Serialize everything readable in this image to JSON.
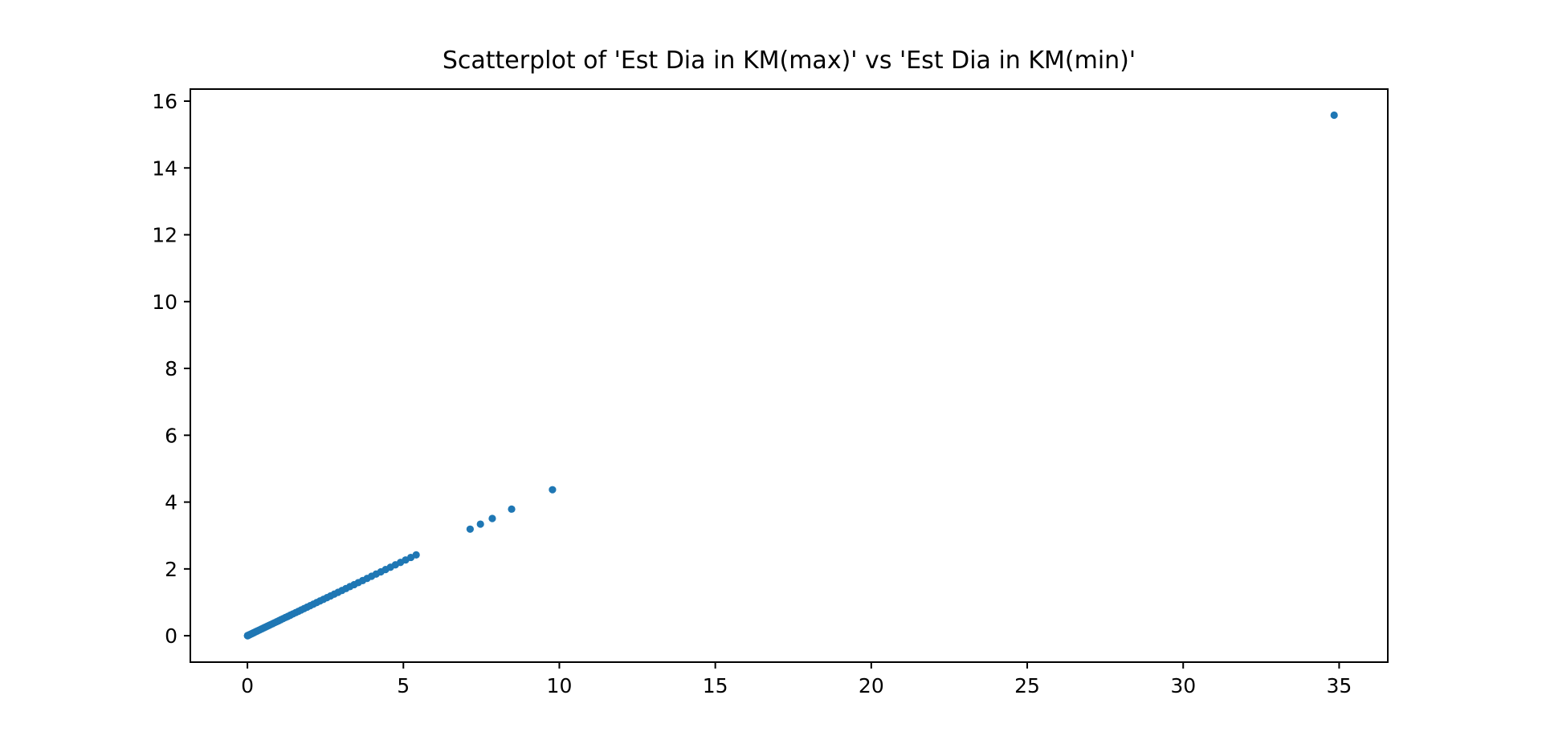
{
  "figure": {
    "background_color": "#ffffff",
    "frame_color": "#000000"
  },
  "chart_data": {
    "type": "scatter",
    "title": "Scatterplot of 'Est Dia in KM(max)' vs 'Est Dia in KM(min)'",
    "xlabel": "",
    "ylabel": "",
    "legend": "none",
    "grid": false,
    "x_axis": {
      "ticks": [
        0,
        5,
        10,
        15,
        20,
        25,
        30,
        35
      ],
      "lim": [
        -1.83,
        36.56
      ]
    },
    "y_axis": {
      "ticks": [
        0,
        2,
        4,
        6,
        8,
        10,
        12,
        14,
        16
      ],
      "lim": [
        -0.79,
        16.36
      ]
    },
    "relationship": "Est Dia in KM(min) = Est Dia in KM(max) / sqrt(5); all points lie on the line y = x / 2.2360679",
    "max_to_min_ratio": 2.2360679,
    "marker": {
      "color": "#1f77b4",
      "radius_px": 4.6
    },
    "dense_cluster": {
      "description": "continuous overlapping band of points from the origin, density decreasing with x",
      "x_min": 0.005,
      "x_max": 5.41,
      "count": 70,
      "density_power": 2.2
    },
    "outlier_points": [
      [
        7.14,
        3.19
      ],
      [
        7.47,
        3.34
      ],
      [
        7.85,
        3.51
      ],
      [
        8.47,
        3.79
      ],
      [
        9.78,
        4.37
      ],
      [
        34.84,
        15.58
      ]
    ]
  }
}
